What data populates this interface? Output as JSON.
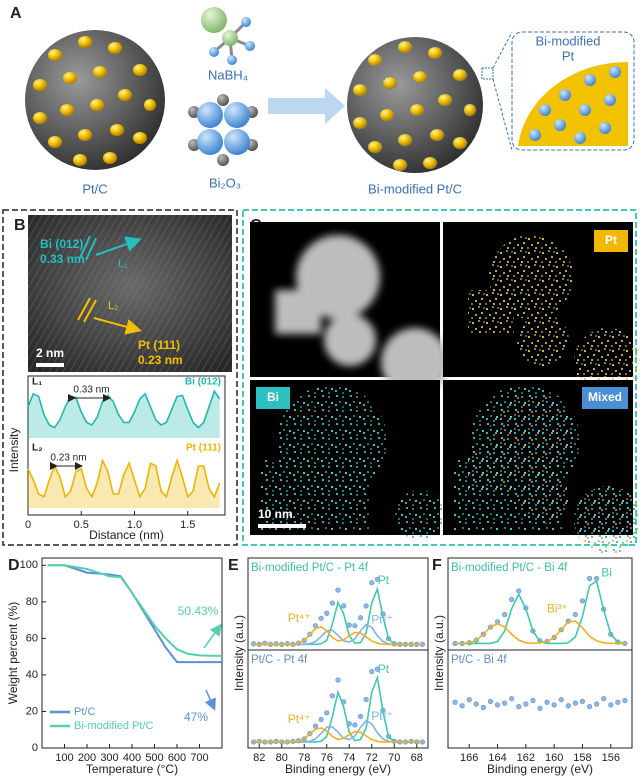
{
  "panel_a": {
    "label": "A",
    "reagents": [
      "NaBH₄",
      "Bi₂O₃"
    ],
    "start": "Pt/C",
    "product": "Bi-modified Pt/C",
    "inset": [
      "Bi-modified",
      "Pt"
    ]
  },
  "panel_b": {
    "label": "B",
    "bi_plane": "Bi (012)",
    "bi_spacing": "0.33 nm",
    "pt_plane": "Pt (111)",
    "pt_spacing": "0.23 nm",
    "scale_bar": "2 nm",
    "line1": "L₁",
    "line2": "L₂",
    "ylabel": "Intensity"
  },
  "panel_c": {
    "label": "C",
    "maps": [
      "Pt",
      "Bi",
      "Mixed"
    ],
    "scale_bar": "10 nm"
  },
  "panel_d": {
    "label": "D"
  },
  "panel_e": {
    "label": "E"
  },
  "panel_f": {
    "label": "F"
  },
  "chart_data": [
    {
      "type": "line",
      "label": "L₁",
      "annotation": "0.33 nm",
      "area": true,
      "xlim": [
        0,
        1.85
      ],
      "ylim": [
        0,
        1
      ],
      "x": [
        0,
        0.05,
        0.1,
        0.15,
        0.2,
        0.25,
        0.3,
        0.35,
        0.4,
        0.45,
        0.5,
        0.55,
        0.6,
        0.65,
        0.7,
        0.75,
        0.8,
        0.85,
        0.9,
        0.95,
        1,
        1.05,
        1.1,
        1.15,
        1.2,
        1.25,
        1.3,
        1.35,
        1.4,
        1.45,
        1.5,
        1.55,
        1.6,
        1.65,
        1.7,
        1.75,
        1.8
      ],
      "series": [
        {
          "name": "Bi (012)",
          "color": "#22b8b0",
          "values": [
            0.6,
            0.85,
            0.8,
            0.45,
            0.25,
            0.2,
            0.35,
            0.6,
            0.8,
            0.78,
            0.5,
            0.3,
            0.25,
            0.4,
            0.7,
            0.82,
            0.7,
            0.45,
            0.3,
            0.3,
            0.5,
            0.75,
            0.85,
            0.6,
            0.35,
            0.25,
            0.3,
            0.55,
            0.8,
            0.82,
            0.55,
            0.3,
            0.2,
            0.3,
            0.6,
            0.9,
            0.75
          ]
        }
      ]
    },
    {
      "type": "line",
      "label": "L₂",
      "annotation": "0.23 nm",
      "area": true,
      "xlim": [
        0,
        1.85
      ],
      "ylim": [
        0,
        1
      ],
      "xlabel": "Distance (nm)",
      "xticks": [
        0,
        0.5,
        {
          "value": 1,
          "label": "1.0"
        },
        1.5
      ],
      "x": [
        0,
        0.05,
        0.1,
        0.15,
        0.2,
        0.25,
        0.3,
        0.35,
        0.4,
        0.45,
        0.5,
        0.55,
        0.6,
        0.65,
        0.7,
        0.75,
        0.8,
        0.85,
        0.9,
        0.95,
        1,
        1.05,
        1.1,
        1.15,
        1.2,
        1.25,
        1.3,
        1.35,
        1.4,
        1.45,
        1.5,
        1.55,
        1.6,
        1.65,
        1.7,
        1.75,
        1.8
      ],
      "series": [
        {
          "name": "Pt (111)",
          "color": "#f0b400",
          "values": [
            0.7,
            0.5,
            0.25,
            0.2,
            0.5,
            0.75,
            0.55,
            0.2,
            0.3,
            0.65,
            0.7,
            0.35,
            0.2,
            0.45,
            0.85,
            0.65,
            0.25,
            0.25,
            0.6,
            0.8,
            0.5,
            0.2,
            0.35,
            0.8,
            0.75,
            0.3,
            0.2,
            0.55,
            0.85,
            0.55,
            0.2,
            0.3,
            0.75,
            0.75,
            0.35,
            0.2,
            0.45
          ]
        }
      ]
    },
    {
      "type": "line",
      "xlabel": "Temperature (°C)",
      "ylabel": "Weight percent (%)",
      "legend": "lower left",
      "annotations": [
        "50.43%",
        "47%"
      ],
      "xlim": [
        0,
        800
      ],
      "ylim": [
        0,
        104
      ],
      "xticks": [
        100,
        200,
        300,
        400,
        500,
        600,
        700
      ],
      "yticks": [
        0,
        20,
        40,
        60,
        80,
        100
      ],
      "x": [
        25,
        100,
        200,
        300,
        350,
        400,
        450,
        500,
        550,
        600,
        650,
        700,
        750,
        800
      ],
      "series": [
        {
          "name": "Pt/C",
          "color": "#5b8fd6",
          "values": [
            100,
            100,
            96,
            95,
            94,
            85,
            75,
            65,
            55,
            47,
            47,
            47,
            47,
            47
          ]
        },
        {
          "name": "Bi-modified Pt/C",
          "color": "#52d0b0",
          "values": [
            100,
            100,
            98,
            94,
            93.5,
            85,
            76,
            67,
            60,
            54,
            51.5,
            50.7,
            50.5,
            50.43
          ]
        }
      ]
    },
    {
      "type": "line",
      "title": "Bi-modified Pt/C - Pt 4f",
      "title_color": "#3cbfa6",
      "xlim": [
        83,
        67
      ],
      "ylim": [
        0,
        1.45
      ],
      "x": [
        82.5,
        82,
        81.5,
        81,
        80.5,
        80,
        79.5,
        79,
        78.5,
        78,
        77.5,
        77,
        76.5,
        76,
        75.5,
        75,
        74.5,
        74,
        73.5,
        73,
        72.5,
        72,
        71.5,
        71,
        70.5,
        70,
        69.5,
        69,
        68.5,
        68,
        67.5
      ],
      "series": [
        {
          "mode": "markers",
          "color": "#8fb7e3",
          "values": [
            0.11,
            0.1,
            0.12,
            0.1,
            0.11,
            0.1,
            0.11,
            0.1,
            0.12,
            0.17,
            0.28,
            0.43,
            0.56,
            0.65,
            0.83,
            1.06,
            0.78,
            0.44,
            0.43,
            0.57,
            0.78,
            1.19,
            1.25,
            0.64,
            0.2,
            0.11,
            0.1,
            0.1,
            0.1,
            0.1,
            0.1
          ]
        },
        {
          "name": "Pt",
          "color": "#3ec9b0",
          "values": [
            0.1,
            0.1,
            0.1,
            0.1,
            0.1,
            0.1,
            0.1,
            0.1,
            0.1,
            0.1,
            0.1,
            0.1,
            0.11,
            0.17,
            0.46,
            0.84,
            0.64,
            0.25,
            0.12,
            0.13,
            0.3,
            0.83,
            1.08,
            0.59,
            0.19,
            0.11,
            0.1,
            0.1,
            0.1,
            0.1,
            0.1
          ]
        },
        {
          "name": "Pt²⁺",
          "color": "#7fb3e8",
          "values": [
            0.1,
            0.1,
            0.1,
            0.1,
            0.1,
            0.1,
            0.1,
            0.1,
            0.1,
            0.1,
            0.11,
            0.15,
            0.24,
            0.34,
            0.35,
            0.26,
            0.16,
            0.14,
            0.2,
            0.34,
            0.45,
            0.4,
            0.25,
            0.15,
            0.11,
            0.1,
            0.1,
            0.1,
            0.1,
            0.1,
            0.1
          ]
        },
        {
          "name": "Pt⁴⁺",
          "color": "#f0b020",
          "values": [
            0.1,
            0.1,
            0.1,
            0.1,
            0.1,
            0.1,
            0.1,
            0.1,
            0.12,
            0.17,
            0.27,
            0.38,
            0.41,
            0.34,
            0.22,
            0.16,
            0.18,
            0.25,
            0.31,
            0.3,
            0.23,
            0.16,
            0.12,
            0.1,
            0.1,
            0.1,
            0.1,
            0.1,
            0.1,
            0.1,
            0.1
          ]
        }
      ]
    },
    {
      "type": "line",
      "title": "Pt/C - Pt 4f",
      "title_color": "#5b8fd6",
      "xlabel": "Binding energy (eV)",
      "ylabel": "Intensity (a.u.)",
      "xlim": [
        83,
        67
      ],
      "ylim": [
        0,
        1.45
      ],
      "xticks": [
        82,
        80,
        78,
        76,
        74,
        72,
        70,
        68
      ],
      "x": [
        82.5,
        82,
        81.5,
        81,
        80.5,
        80,
        79.5,
        79,
        78.5,
        78,
        77.5,
        77,
        76.5,
        76,
        75.5,
        75,
        74.5,
        74,
        73.5,
        73,
        72.5,
        72,
        71.5,
        71,
        70.5,
        70,
        69.5,
        69,
        68.5,
        68,
        67.5
      ],
      "series": [
        {
          "mode": "markers",
          "color": "#8fb7e3",
          "values": [
            0.1,
            0.11,
            0.1,
            0.1,
            0.11,
            0.1,
            0.1,
            0.11,
            0.12,
            0.15,
            0.24,
            0.36,
            0.47,
            0.58,
            0.86,
            1.12,
            0.76,
            0.4,
            0.38,
            0.52,
            0.8,
            1.26,
            1.3,
            0.62,
            0.19,
            0.11,
            0.1,
            0.1,
            0.11,
            0.1,
            0.1
          ]
        },
        {
          "name": "Pt",
          "color": "#3ec9b0",
          "values": [
            0.1,
            0.1,
            0.1,
            0.1,
            0.1,
            0.1,
            0.1,
            0.1,
            0.1,
            0.1,
            0.1,
            0.1,
            0.11,
            0.19,
            0.52,
            0.92,
            0.68,
            0.26,
            0.12,
            0.14,
            0.33,
            0.92,
            1.16,
            0.6,
            0.18,
            0.11,
            0.1,
            0.1,
            0.1,
            0.1,
            0.1
          ]
        },
        {
          "name": "Pt²⁺",
          "color": "#7fb3e8",
          "values": [
            0.1,
            0.1,
            0.1,
            0.1,
            0.1,
            0.1,
            0.1,
            0.1,
            0.1,
            0.1,
            0.11,
            0.15,
            0.24,
            0.34,
            0.35,
            0.26,
            0.16,
            0.14,
            0.2,
            0.34,
            0.45,
            0.4,
            0.25,
            0.15,
            0.11,
            0.1,
            0.1,
            0.1,
            0.1,
            0.1,
            0.1
          ]
        },
        {
          "name": "Pt⁴⁺",
          "color": "#f0b020",
          "values": [
            0.1,
            0.1,
            0.1,
            0.1,
            0.1,
            0.1,
            0.1,
            0.1,
            0.11,
            0.15,
            0.23,
            0.31,
            0.33,
            0.28,
            0.19,
            0.14,
            0.16,
            0.22,
            0.27,
            0.26,
            0.2,
            0.14,
            0.11,
            0.1,
            0.1,
            0.1,
            0.1,
            0.1,
            0.1,
            0.1,
            0.1
          ]
        }
      ]
    },
    {
      "type": "line",
      "title": "Bi-modified Pt/C - Bi 4f",
      "title_color": "#3cbfa6",
      "xlim": [
        167.5,
        154.5
      ],
      "ylim": [
        0,
        1.25
      ],
      "x": [
        167,
        166.5,
        166,
        165.5,
        165,
        164.5,
        164,
        163.5,
        163,
        162.5,
        162,
        161.5,
        161,
        160.5,
        160,
        159.5,
        159,
        158.5,
        158,
        157.5,
        157,
        156.5,
        156,
        155.5,
        155
      ],
      "series": [
        {
          "mode": "markers",
          "color": "#8fb7e3",
          "values": [
            0.1,
            0.1,
            0.11,
            0.15,
            0.24,
            0.35,
            0.43,
            0.54,
            0.77,
            0.9,
            0.64,
            0.29,
            0.14,
            0.13,
            0.19,
            0.31,
            0.44,
            0.54,
            0.75,
            1.09,
            1.09,
            0.62,
            0.24,
            0.12,
            0.1
          ]
        },
        {
          "name": "Bi",
          "color": "#3ec9b0",
          "values": [
            0.1,
            0.1,
            0.1,
            0.1,
            0.1,
            0.1,
            0.13,
            0.29,
            0.63,
            0.85,
            0.63,
            0.29,
            0.13,
            0.1,
            0.1,
            0.1,
            0.11,
            0.2,
            0.51,
            0.98,
            1.05,
            0.61,
            0.24,
            0.12,
            0.1
          ]
        },
        {
          "name": "Bi³⁺",
          "color": "#f0b020",
          "values": [
            0.1,
            0.1,
            0.11,
            0.15,
            0.24,
            0.35,
            0.4,
            0.35,
            0.24,
            0.15,
            0.11,
            0.1,
            0.11,
            0.13,
            0.19,
            0.31,
            0.43,
            0.44,
            0.34,
            0.21,
            0.14,
            0.11,
            0.1,
            0.1,
            0.1
          ]
        }
      ]
    },
    {
      "type": "line",
      "title": "Pt/C - Bi 4f",
      "title_color": "#5b8fd6",
      "xlabel": "Binding energy (eV)",
      "ylabel": "Intensity (a.u.)",
      "xlim": [
        167.5,
        154.5
      ],
      "ylim": [
        0,
        1
      ],
      "xticks": [
        166,
        164,
        162,
        160,
        158,
        156
      ],
      "x": [
        167,
        166.5,
        166,
        165.5,
        165,
        164.5,
        164,
        163.5,
        163,
        162.5,
        162,
        161.5,
        161,
        160.5,
        160,
        159.5,
        159,
        158.5,
        158,
        157.5,
        157,
        156.5,
        156,
        155.5,
        155
      ],
      "series": [
        {
          "mode": "markers",
          "color": "#8fb7e3",
          "values": [
            0.52,
            0.48,
            0.55,
            0.5,
            0.46,
            0.53,
            0.49,
            0.51,
            0.56,
            0.47,
            0.5,
            0.54,
            0.45,
            0.52,
            0.49,
            0.55,
            0.48,
            0.51,
            0.53,
            0.47,
            0.5,
            0.56,
            0.49,
            0.52,
            0.54
          ]
        }
      ]
    }
  ]
}
